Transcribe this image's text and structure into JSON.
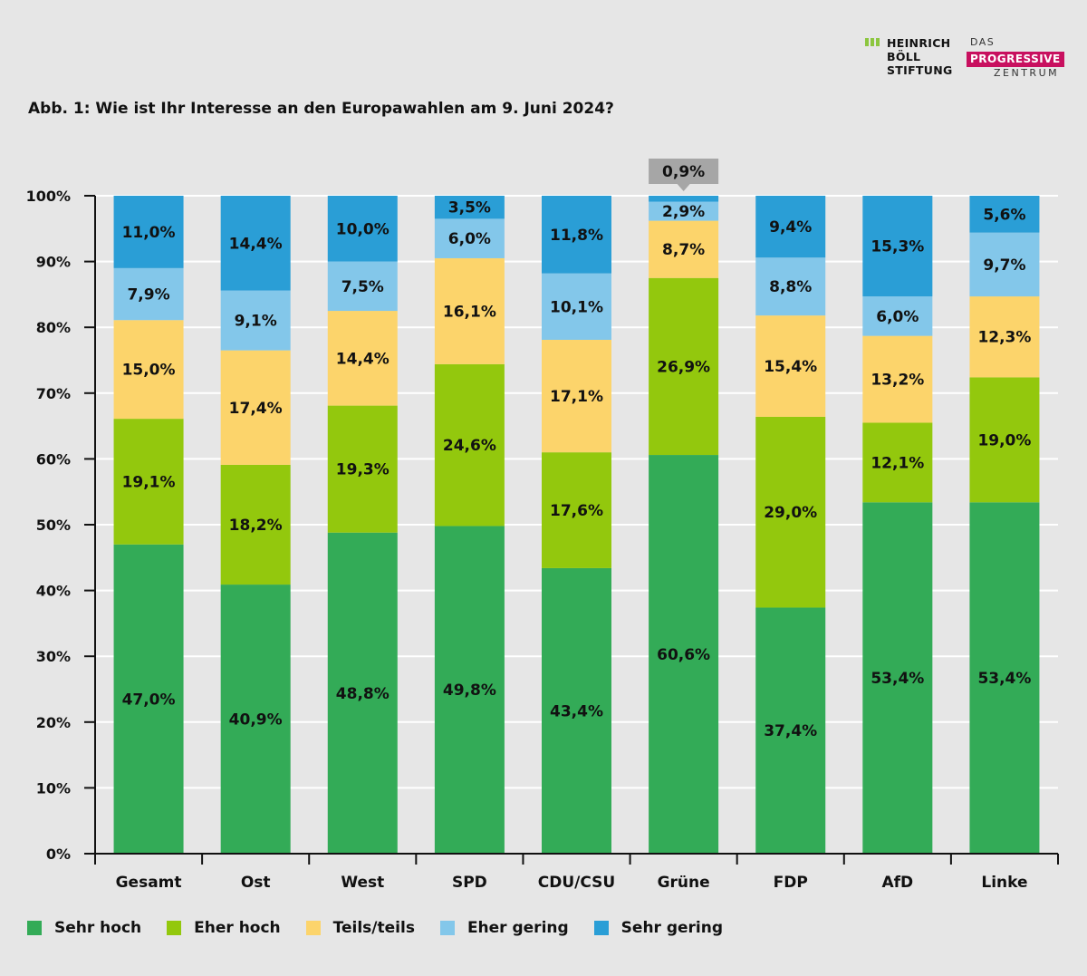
{
  "logos": {
    "boell": [
      "HEINRICH",
      "BÖLL",
      "STIFTUNG"
    ],
    "progressive": {
      "das": "DAS",
      "main": "PROGRESSIVE",
      "zentrum": "ZENTRUM"
    }
  },
  "chart_data": {
    "type": "bar",
    "stacked": true,
    "title": "Abb. 1: Wie ist Ihr Interesse an den Europawahlen am 9. Juni 2024?",
    "xlabel": "",
    "ylabel": "",
    "ylim": [
      0,
      100
    ],
    "yticks": [
      "0%",
      "10%",
      "20%",
      "30%",
      "40%",
      "50%",
      "60%",
      "70%",
      "80%",
      "90%",
      "100%"
    ],
    "grid": true,
    "legend_position": "bottom",
    "categories": [
      "Gesamt",
      "Ost",
      "West",
      "SPD",
      "CDU/CSU",
      "Grüne",
      "FDP",
      "AfD",
      "Linke"
    ],
    "series": [
      {
        "name": "Sehr hoch",
        "color": "#33ab57",
        "values": [
          47.0,
          40.9,
          48.8,
          49.8,
          43.4,
          60.6,
          37.4,
          53.4,
          53.4
        ],
        "labels": [
          "47,0%",
          "40,9%",
          "48,8%",
          "49,8%",
          "43,4%",
          "60,6%",
          "37,4%",
          "53,4%",
          "53,4%"
        ]
      },
      {
        "name": "Eher hoch",
        "color": "#93c80d",
        "values": [
          19.1,
          18.2,
          19.3,
          24.6,
          17.6,
          26.9,
          29.0,
          12.1,
          19.0
        ],
        "labels": [
          "19,1%",
          "18,2%",
          "19,3%",
          "24,6%",
          "17,6%",
          "26,9%",
          "29,0%",
          "12,1%",
          "19,0%"
        ]
      },
      {
        "name": "Teils/teils",
        "color": "#fcd46b",
        "values": [
          15.0,
          17.4,
          14.4,
          16.1,
          17.1,
          8.7,
          15.4,
          13.2,
          12.3
        ],
        "labels": [
          "15,0%",
          "17,4%",
          "14,4%",
          "16,1%",
          "17,1%",
          "8,7%",
          "15,4%",
          "13,2%",
          "12,3%"
        ]
      },
      {
        "name": "Eher gering",
        "color": "#83c7ea",
        "values": [
          7.9,
          9.1,
          7.5,
          6.0,
          10.1,
          2.9,
          8.8,
          6.0,
          9.7
        ],
        "labels": [
          "7,9%",
          "9,1%",
          "7,5%",
          "6,0%",
          "10,1%",
          "2,9%",
          "8,8%",
          "6,0%",
          "9,7%"
        ]
      },
      {
        "name": "Sehr gering",
        "color": "#2a9ed6",
        "values": [
          11.0,
          14.4,
          10.0,
          3.5,
          11.8,
          0.9,
          9.4,
          15.3,
          5.6
        ],
        "labels": [
          "11,0%",
          "14,4%",
          "10,0%",
          "3,5%",
          "11,8%",
          "0,9%",
          "9,4%",
          "15,3%",
          "5,6%"
        ]
      }
    ],
    "callout": {
      "category": "Grüne",
      "series": "Sehr gering",
      "label": "0,9%"
    }
  }
}
